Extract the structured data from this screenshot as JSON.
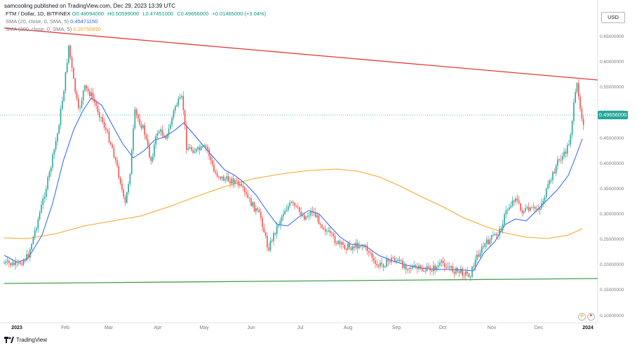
{
  "publisher": "samcooling published on TradingView.com, Dec 29, 2023 13:39 UTC",
  "legend": {
    "symbol": "FTM / Dollar, 1D, BITFINEX",
    "open": "O0.48094000",
    "high": "H0.50599000",
    "low": "L0.47451000",
    "close": "C0.49656000",
    "change": "+0.01465000 (+3.04%)",
    "sma20_label": "SMA (20, close, 0, SMA, 5)",
    "sma20_value": "0.45471150",
    "sma200_label": "SMA (200, close, 0, SMA, 5)",
    "sma200_value": "0.26756890"
  },
  "currency_button": "USD",
  "price_axis": {
    "labels": [
      "0.65000000",
      "0.60000000",
      "0.55000000",
      "0.50000000",
      "0.45000000",
      "0.40000000",
      "0.35000000",
      "0.30000000",
      "0.25000000",
      "0.20000000",
      "0.15000000",
      "0.10000000"
    ],
    "current_price": "0.49656000"
  },
  "time_axis": [
    "2023",
    "Feb",
    "Mar",
    "Apr",
    "May",
    "Jun",
    "Jul",
    "Aug",
    "Sep",
    "Oct",
    "Nov",
    "Dec",
    "2024"
  ],
  "footer_brand": "TradingView",
  "colors": {
    "up": "#26a69a",
    "down": "#ef5350",
    "sma20": "#2962ff",
    "sma200": "#f5a623",
    "trend_top": "#e53935",
    "trend_bottom": "#43a047"
  },
  "chart_data": {
    "type": "candlestick",
    "symbol": "FTM/USD",
    "current_close": 0.49656,
    "y_range": [
      0.1,
      0.65
    ],
    "monthly_closes": [
      {
        "month": "2023-01",
        "close": 0.42
      },
      {
        "month": "2023-02",
        "close": 0.46
      },
      {
        "month": "2023-03",
        "close": 0.44
      },
      {
        "month": "2023-04",
        "close": 0.45
      },
      {
        "month": "2023-05",
        "close": 0.34
      },
      {
        "month": "2023-06",
        "close": 0.26
      },
      {
        "month": "2023-07",
        "close": 0.26
      },
      {
        "month": "2023-08",
        "close": 0.2
      },
      {
        "month": "2023-09",
        "close": 0.19
      },
      {
        "month": "2023-10",
        "close": 0.23
      },
      {
        "month": "2023-11",
        "close": 0.3
      },
      {
        "month": "2023-12",
        "close": 0.5
      }
    ],
    "trendlines": [
      {
        "name": "resistance",
        "from": 0.65,
        "to": 0.568
      },
      {
        "name": "support",
        "from": 0.155,
        "to": 0.175
      }
    ]
  }
}
